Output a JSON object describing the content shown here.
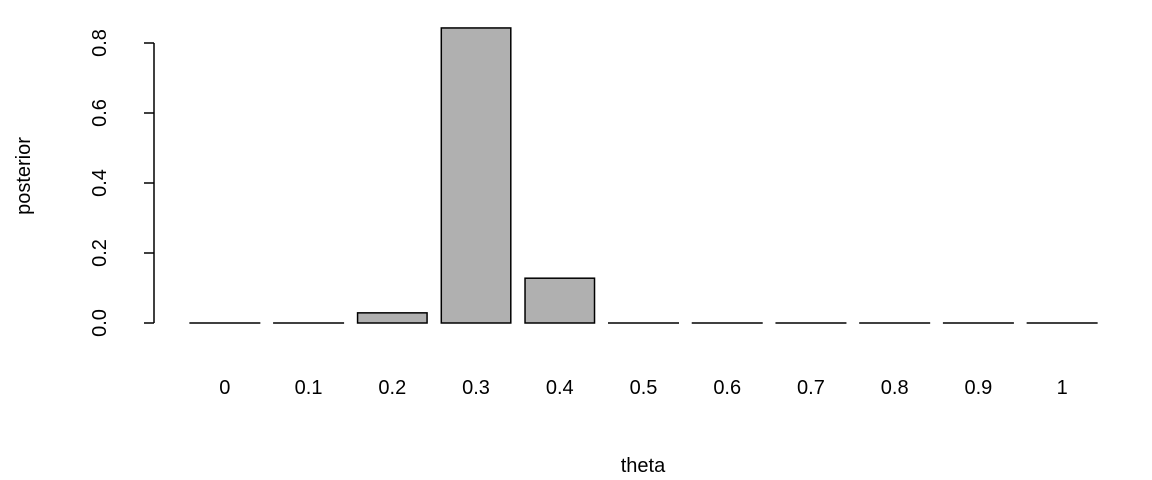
{
  "chart_data": {
    "type": "bar",
    "title": "",
    "xlabel": "theta",
    "ylabel": "posterior",
    "categories": [
      "0",
      "0.1",
      "0.2",
      "0.3",
      "0.4",
      "0.5",
      "0.6",
      "0.7",
      "0.8",
      "0.9",
      "1"
    ],
    "values": [
      0.0,
      0.0,
      0.029,
      0.843,
      0.128,
      0.0,
      0.0,
      0.0,
      0.0,
      0.0,
      0.0
    ],
    "ylim": [
      0,
      0.8
    ],
    "yticks": [
      "0.0",
      "0.2",
      "0.4",
      "0.6",
      "0.8"
    ],
    "ytick_values": [
      0.0,
      0.2,
      0.4,
      0.6,
      0.8
    ],
    "grid": false,
    "bar_color": "#b0b0b0",
    "edge_color": "#000000"
  }
}
